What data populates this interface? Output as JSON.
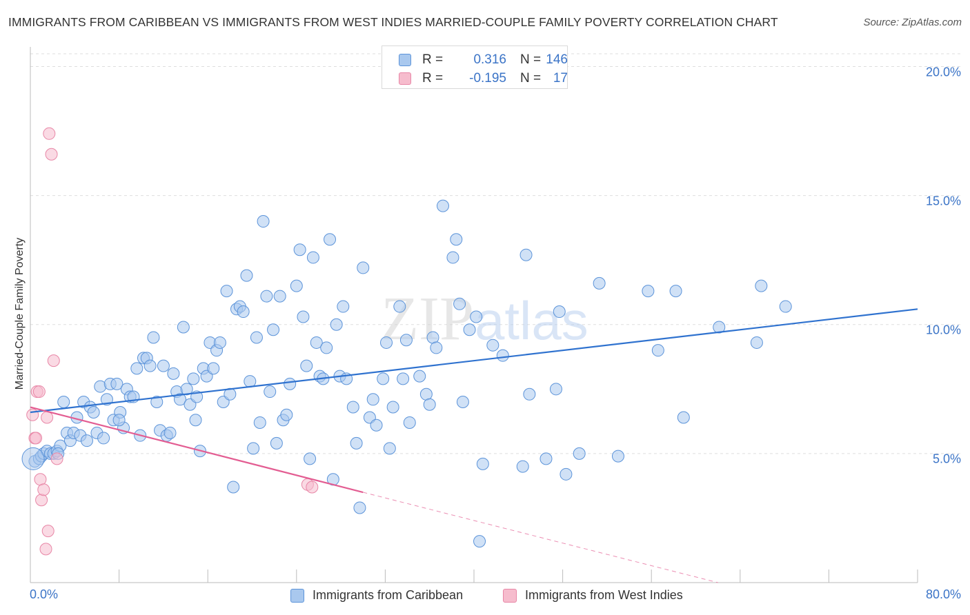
{
  "title": "IMMIGRANTS FROM CARIBBEAN VS IMMIGRANTS FROM WEST INDIES MARRIED-COUPLE FAMILY POVERTY CORRELATION CHART",
  "source": "Source: ZipAtlas.com",
  "watermark": {
    "zip": "ZIP",
    "atlas": "atlas"
  },
  "legend_top": {
    "rows": [
      {
        "r_label": "R =",
        "r_value": "0.316",
        "n_label": "N =",
        "n_value": "146"
      },
      {
        "r_label": "R =",
        "r_value": "-0.195",
        "n_label": "N =",
        "n_value": "17"
      }
    ]
  },
  "legend_bottom": {
    "series1": "Immigrants from Caribbean",
    "series2": "Immigrants from West Indies"
  },
  "colors": {
    "blue_fill": "#a9c8ee",
    "blue_stroke": "#5b93d9",
    "blue_line": "#2f72cf",
    "pink_fill": "#f6bccd",
    "pink_stroke": "#e886a6",
    "pink_line": "#e35d92",
    "grid": "#dddddd",
    "tick_text": "#3b74c7"
  },
  "chart_data": {
    "type": "scatter",
    "title": "IMMIGRANTS FROM CARIBBEAN VS IMMIGRANTS FROM WEST INDIES MARRIED-COUPLE FAMILY POVERTY CORRELATION CHART",
    "xlabel": "",
    "ylabel": "Married-Couple Family Poverty",
    "xlim": [
      0,
      80
    ],
    "ylim": [
      0,
      20
    ],
    "x_tick_labels": [
      "0.0%",
      "80.0%"
    ],
    "y_ticks": [
      5,
      10,
      15,
      20
    ],
    "y_tick_labels": [
      "5.0%",
      "10.0%",
      "15.0%",
      "20.0%"
    ],
    "grid": true,
    "legend": "bottom",
    "series": [
      {
        "name": "Immigrants from Caribbean",
        "r": 0.316,
        "n": 146,
        "trend": {
          "x": [
            0,
            80
          ],
          "y": [
            6.6,
            10.6
          ]
        },
        "points": [
          [
            0.4,
            4.7
          ],
          [
            0.8,
            4.8
          ],
          [
            1.0,
            4.9
          ],
          [
            1.2,
            5.0
          ],
          [
            1.5,
            5.1
          ],
          [
            1.8,
            5.0
          ],
          [
            2.1,
            5.0
          ],
          [
            2.4,
            5.1
          ],
          [
            2.7,
            5.3
          ],
          [
            3.0,
            7.0
          ],
          [
            3.3,
            5.8
          ],
          [
            3.6,
            5.5
          ],
          [
            3.9,
            5.8
          ],
          [
            4.2,
            6.4
          ],
          [
            4.5,
            5.7
          ],
          [
            4.8,
            7.0
          ],
          [
            5.1,
            5.5
          ],
          [
            5.4,
            6.8
          ],
          [
            5.7,
            6.6
          ],
          [
            6.0,
            5.8
          ],
          [
            6.3,
            7.6
          ],
          [
            6.6,
            5.6
          ],
          [
            6.9,
            7.1
          ],
          [
            7.2,
            7.7
          ],
          [
            7.5,
            6.3
          ],
          [
            7.8,
            7.7
          ],
          [
            8.1,
            6.6
          ],
          [
            8.4,
            6.0
          ],
          [
            8.7,
            7.5
          ],
          [
            9.0,
            7.2
          ],
          [
            9.3,
            7.2
          ],
          [
            9.6,
            8.3
          ],
          [
            9.9,
            5.7
          ],
          [
            10.2,
            8.7
          ],
          [
            10.5,
            8.7
          ],
          [
            10.8,
            8.4
          ],
          [
            11.1,
            9.5
          ],
          [
            11.4,
            7.0
          ],
          [
            11.7,
            5.9
          ],
          [
            12.0,
            8.4
          ],
          [
            12.3,
            5.7
          ],
          [
            12.6,
            5.8
          ],
          [
            12.9,
            8.1
          ],
          [
            13.2,
            7.4
          ],
          [
            13.5,
            7.1
          ],
          [
            13.8,
            9.9
          ],
          [
            14.1,
            7.5
          ],
          [
            14.4,
            6.9
          ],
          [
            14.7,
            7.9
          ],
          [
            15.0,
            7.2
          ],
          [
            15.3,
            5.1
          ],
          [
            15.6,
            8.3
          ],
          [
            15.9,
            8.0
          ],
          [
            16.2,
            9.3
          ],
          [
            16.5,
            8.3
          ],
          [
            16.8,
            9.0
          ],
          [
            17.1,
            9.3
          ],
          [
            17.4,
            7.0
          ],
          [
            17.7,
            11.3
          ],
          [
            18.0,
            7.3
          ],
          [
            18.3,
            3.7
          ],
          [
            18.6,
            10.6
          ],
          [
            18.9,
            10.7
          ],
          [
            19.2,
            10.5
          ],
          [
            19.5,
            11.9
          ],
          [
            19.8,
            7.8
          ],
          [
            20.1,
            5.2
          ],
          [
            20.4,
            9.5
          ],
          [
            20.7,
            6.2
          ],
          [
            21.0,
            14.0
          ],
          [
            21.3,
            11.1
          ],
          [
            21.6,
            7.4
          ],
          [
            21.9,
            9.8
          ],
          [
            22.2,
            5.4
          ],
          [
            22.5,
            11.1
          ],
          [
            22.8,
            6.3
          ],
          [
            23.1,
            6.5
          ],
          [
            23.4,
            7.7
          ],
          [
            24.0,
            11.5
          ],
          [
            24.3,
            12.9
          ],
          [
            24.6,
            10.3
          ],
          [
            24.9,
            8.4
          ],
          [
            25.2,
            4.8
          ],
          [
            25.5,
            12.6
          ],
          [
            25.8,
            9.3
          ],
          [
            26.1,
            8.0
          ],
          [
            26.4,
            7.9
          ],
          [
            26.7,
            9.1
          ],
          [
            27.0,
            13.3
          ],
          [
            27.3,
            4.0
          ],
          [
            27.6,
            10.0
          ],
          [
            27.9,
            8.0
          ],
          [
            28.2,
            10.7
          ],
          [
            28.5,
            7.9
          ],
          [
            29.1,
            6.8
          ],
          [
            29.4,
            5.4
          ],
          [
            29.7,
            2.9
          ],
          [
            30.0,
            12.2
          ],
          [
            30.6,
            6.4
          ],
          [
            30.9,
            7.1
          ],
          [
            31.2,
            6.1
          ],
          [
            31.8,
            7.9
          ],
          [
            32.1,
            9.3
          ],
          [
            32.4,
            5.2
          ],
          [
            32.7,
            6.8
          ],
          [
            33.3,
            10.7
          ],
          [
            33.6,
            7.9
          ],
          [
            33.9,
            9.4
          ],
          [
            34.2,
            6.2
          ],
          [
            35.1,
            8.0
          ],
          [
            35.7,
            7.3
          ],
          [
            36.3,
            9.5
          ],
          [
            36.6,
            9.1
          ],
          [
            37.2,
            14.6
          ],
          [
            38.1,
            12.6
          ],
          [
            38.4,
            13.3
          ],
          [
            38.7,
            10.8
          ],
          [
            39.0,
            7.0
          ],
          [
            39.6,
            9.8
          ],
          [
            40.2,
            10.3
          ],
          [
            40.5,
            1.6
          ],
          [
            40.8,
            4.6
          ],
          [
            41.7,
            9.2
          ],
          [
            42.6,
            8.8
          ],
          [
            44.4,
            4.5
          ],
          [
            44.7,
            12.7
          ],
          [
            45.0,
            7.3
          ],
          [
            46.5,
            4.8
          ],
          [
            47.4,
            7.5
          ],
          [
            47.7,
            10.5
          ],
          [
            48.3,
            4.2
          ],
          [
            49.5,
            5.0
          ],
          [
            51.3,
            11.6
          ],
          [
            53.0,
            4.9
          ],
          [
            55.7,
            11.3
          ],
          [
            56.6,
            9.0
          ],
          [
            58.2,
            11.3
          ],
          [
            58.9,
            6.4
          ],
          [
            62.1,
            9.9
          ],
          [
            65.5,
            9.3
          ],
          [
            65.9,
            11.5
          ],
          [
            68.1,
            10.7
          ],
          [
            36.0,
            6.9
          ],
          [
            14.9,
            6.3
          ],
          [
            8.0,
            6.3
          ],
          [
            2.5,
            5.0
          ]
        ]
      },
      {
        "name": "Immigrants from West Indies",
        "r": -0.195,
        "n": 17,
        "trend": {
          "x": [
            0,
            30
          ],
          "y": [
            6.8,
            3.5
          ]
        },
        "trend_dashed": {
          "x": [
            30,
            62
          ],
          "y": [
            3.5,
            0
          ]
        },
        "points": [
          [
            0.2,
            6.5
          ],
          [
            0.4,
            5.6
          ],
          [
            0.5,
            5.6
          ],
          [
            0.6,
            7.4
          ],
          [
            0.8,
            7.4
          ],
          [
            0.9,
            4.0
          ],
          [
            1.0,
            3.2
          ],
          [
            1.2,
            3.6
          ],
          [
            1.4,
            1.3
          ],
          [
            1.5,
            6.4
          ],
          [
            1.6,
            2.0
          ],
          [
            1.7,
            17.4
          ],
          [
            1.9,
            16.6
          ],
          [
            2.1,
            8.6
          ],
          [
            2.4,
            4.8
          ],
          [
            25.0,
            3.8
          ],
          [
            25.4,
            3.7
          ]
        ]
      }
    ]
  }
}
